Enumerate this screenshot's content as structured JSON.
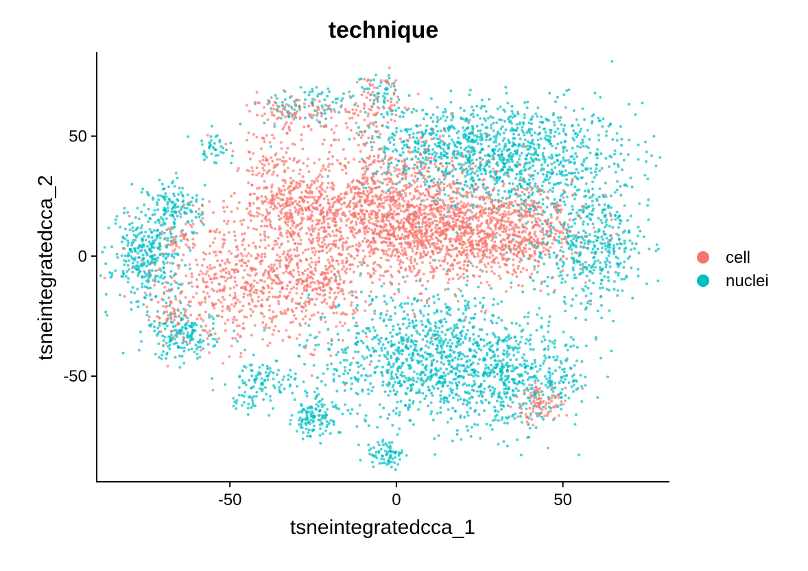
{
  "chart_data": {
    "type": "scatter",
    "title": "technique",
    "xlabel": "tsneintegratedcca_1",
    "ylabel": "tsneintegratedcca_2",
    "xlim": [
      -90,
      82
    ],
    "ylim": [
      -94,
      85
    ],
    "xticks": [
      -50,
      0,
      50
    ],
    "yticks": [
      -50,
      0,
      50
    ],
    "xtick_labels": [
      "-50",
      "0",
      "50"
    ],
    "ytick_labels": [
      "-50",
      "0",
      "50"
    ],
    "grid": false,
    "legend_position": "right",
    "series": [
      {
        "name": "cell",
        "color": "#F8766D",
        "clusters": [
          {
            "cx": -5,
            "cy": 18,
            "sx": 16,
            "sy": 15,
            "n": 1300
          },
          {
            "cx": 20,
            "cy": 10,
            "sx": 14,
            "sy": 10,
            "n": 900
          },
          {
            "cx": 40,
            "cy": 10,
            "sx": 8,
            "sy": 8,
            "n": 250
          },
          {
            "cx": -42,
            "cy": -10,
            "sx": 14,
            "sy": 14,
            "n": 700
          },
          {
            "cx": -30,
            "cy": 20,
            "sx": 8,
            "sy": 6,
            "n": 250
          },
          {
            "cx": -38,
            "cy": 40,
            "sx": 5,
            "sy": 6,
            "n": 70
          },
          {
            "cx": -35,
            "cy": 60,
            "sx": 5,
            "sy": 5,
            "n": 60
          },
          {
            "cx": -22,
            "cy": 58,
            "sx": 6,
            "sy": 4,
            "n": 50
          },
          {
            "cx": -7,
            "cy": 62,
            "sx": 4,
            "sy": 8,
            "n": 90
          },
          {
            "cx": -22,
            "cy": -10,
            "sx": 5,
            "sy": 6,
            "n": 120
          },
          {
            "cx": 43,
            "cy": -62,
            "sx": 4,
            "sy": 4,
            "n": 90
          },
          {
            "cx": -68,
            "cy": -25,
            "sx": 3,
            "sy": 5,
            "n": 40
          },
          {
            "cx": -65,
            "cy": 8,
            "sx": 3,
            "sy": 3,
            "n": 30
          }
        ]
      },
      {
        "name": "nuclei",
        "color": "#00BFC4",
        "clusters": [
          {
            "cx": 35,
            "cy": 40,
            "sx": 18,
            "sy": 12,
            "n": 950
          },
          {
            "cx": 58,
            "cy": 5,
            "sx": 9,
            "sy": 12,
            "n": 450
          },
          {
            "cx": 15,
            "cy": 48,
            "sx": 12,
            "sy": 8,
            "n": 300
          },
          {
            "cx": 10,
            "cy": -42,
            "sx": 18,
            "sy": 14,
            "n": 1050
          },
          {
            "cx": 35,
            "cy": -52,
            "sx": 12,
            "sy": 9,
            "n": 420
          },
          {
            "cx": -75,
            "cy": 0,
            "sx": 5,
            "sy": 10,
            "n": 350
          },
          {
            "cx": -66,
            "cy": 20,
            "sx": 4,
            "sy": 6,
            "n": 130
          },
          {
            "cx": -64,
            "cy": -33,
            "sx": 5,
            "sy": 5,
            "n": 170
          },
          {
            "cx": -25,
            "cy": -68,
            "sx": 3,
            "sy": 4,
            "n": 120
          },
          {
            "cx": -40,
            "cy": -52,
            "sx": 5,
            "sy": 4,
            "n": 90
          },
          {
            "cx": -3,
            "cy": -83,
            "sx": 3,
            "sy": 3,
            "n": 70
          },
          {
            "cx": -26,
            "cy": 63,
            "sx": 8,
            "sy": 4,
            "n": 90
          },
          {
            "cx": -5,
            "cy": 68,
            "sx": 3,
            "sy": 4,
            "n": 50
          },
          {
            "cx": -55,
            "cy": 45,
            "sx": 3,
            "sy": 3,
            "n": 40
          },
          {
            "cx": -45,
            "cy": -60,
            "sx": 2,
            "sy": 2,
            "n": 20
          }
        ]
      }
    ]
  }
}
